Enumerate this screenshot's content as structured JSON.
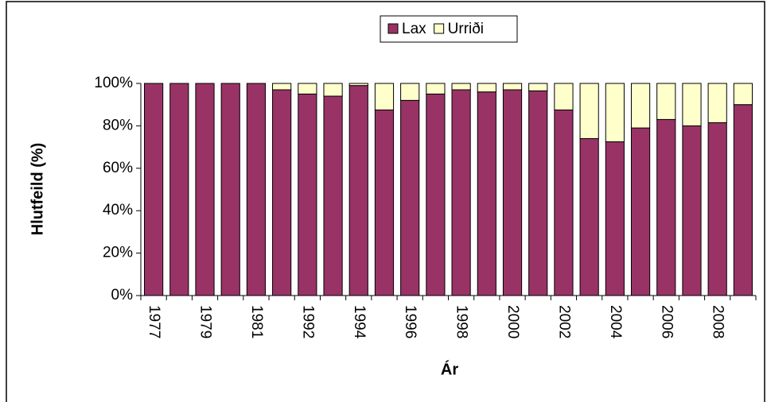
{
  "chart_data": {
    "type": "stacked_bar",
    "xlabel": "Ár",
    "ylabel": "Hlutfeild (%)",
    "categories": [
      "1977",
      null,
      "1979",
      null,
      "1981",
      null,
      "1992",
      null,
      "1994",
      null,
      "1996",
      null,
      "1998",
      null,
      "2000",
      null,
      "2002",
      null,
      "2004",
      null,
      "2006",
      null,
      "2008",
      null
    ],
    "series": [
      {
        "name": "Lax",
        "color": "#993366",
        "values": [
          100,
          100,
          100,
          100,
          100,
          97,
          95,
          94,
          99,
          87.5,
          92,
          95,
          97,
          96,
          97,
          96.5,
          87.5,
          74,
          72.5,
          79,
          83,
          80,
          81.5,
          90
        ]
      },
      {
        "name": "Urriði",
        "color": "#ffffcc",
        "values": [
          0,
          0,
          0,
          0,
          0,
          3,
          5,
          6,
          1,
          12.5,
          8,
          5,
          3,
          4,
          3,
          3.5,
          12.5,
          26,
          27.5,
          21,
          17,
          20,
          18.5,
          10
        ]
      }
    ],
    "ylim": [
      0,
      100
    ],
    "yticks": [
      {
        "value": 0,
        "label": "0%"
      },
      {
        "value": 20,
        "label": "20%"
      },
      {
        "value": 40,
        "label": "40%"
      },
      {
        "value": 60,
        "label": "60%"
      },
      {
        "value": 80,
        "label": "80%"
      },
      {
        "value": 100,
        "label": "100%"
      }
    ],
    "grid": false,
    "legend": "top"
  }
}
